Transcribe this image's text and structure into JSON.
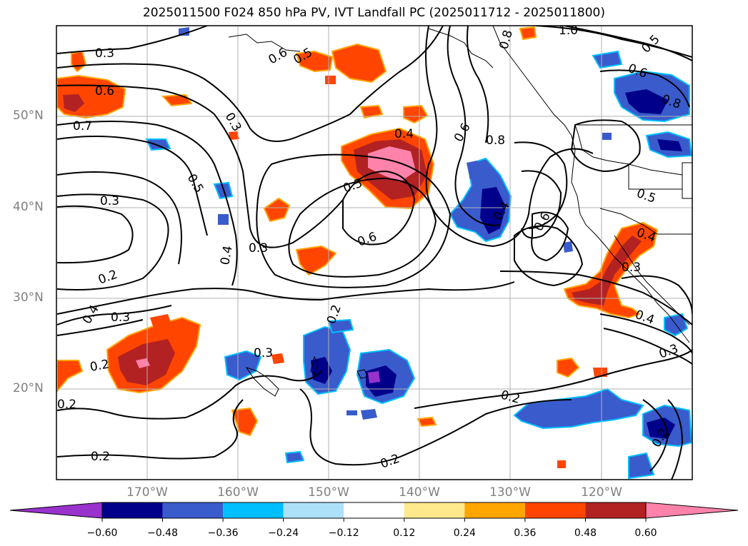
{
  "title": "2025011500 F024 850 hPa PV, IVT Landfall PC (2025011712 - 2025011800)",
  "lat_labels": [
    "50°N",
    "40°N",
    "30°N",
    "20°N"
  ],
  "lon_labels": [
    "170°W",
    "160°W",
    "150°W",
    "140°W",
    "130°W",
    "120°W"
  ],
  "contour_labels": [
    "0.3",
    "0.6",
    "0.7",
    "0.5",
    "0.6",
    "0.5",
    "0.3",
    "0.3",
    "0.5",
    "0.4",
    "0.4",
    "0.3",
    "0.6",
    "0.2",
    "0.4",
    "0.3",
    "0.2",
    "0.3",
    "0.2",
    "0.2",
    "0.2",
    "0.2",
    "0.2",
    "0.8",
    "1.0",
    "0.5",
    "0.6",
    "0.8",
    "0.6",
    "0.8",
    "0.4",
    "0.6",
    "0.5",
    "0.4",
    "0.3",
    "0.4",
    "0.3",
    "0.2"
  ],
  "colorbar": {
    "ticks": [
      "−0.60",
      "−0.48",
      "−0.36",
      "−0.24",
      "−0.12",
      "0.12",
      "0.24",
      "0.36",
      "0.48",
      "0.60"
    ],
    "colors": [
      "#9932CC",
      "#00008B",
      "#3A5BCC",
      "#00BFFF",
      "#ADE1FA",
      "#FFFFFF",
      "#FFE98C",
      "#FFA500",
      "#FF4500",
      "#B22222",
      "#FF82AB"
    ]
  }
}
